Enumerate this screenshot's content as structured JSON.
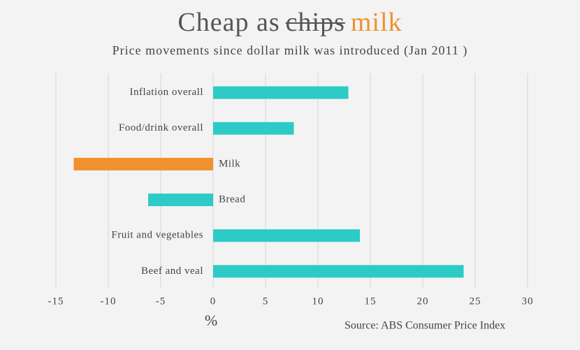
{
  "chart_data": {
    "type": "hbar",
    "title": {
      "lead": "Cheap as",
      "struck": "chips",
      "highlight": "milk"
    },
    "subtitle": "Price movements since dollar milk was introduced (Jan 2011 )",
    "x_label": "%",
    "source": "Source: ABS Consumer Price Index",
    "categories": [
      "Inflation overall",
      "Food/drink overall",
      "Milk",
      "Bread",
      "Fruit and vegetables",
      "Beef and veal"
    ],
    "values": [
      12.9,
      7.7,
      -13.3,
      -6.2,
      14.0,
      23.9
    ],
    "colors": [
      "#2ccbc5",
      "#2ccbc5",
      "#f0912d",
      "#2ccbc5",
      "#2ccbc5",
      "#2ccbc5"
    ],
    "highlight_color": "#f0912d",
    "xlim": [
      -15,
      30
    ],
    "xticks": [
      -15,
      -10,
      -5,
      0,
      5,
      10,
      15,
      20,
      25,
      30
    ],
    "grid": true
  }
}
